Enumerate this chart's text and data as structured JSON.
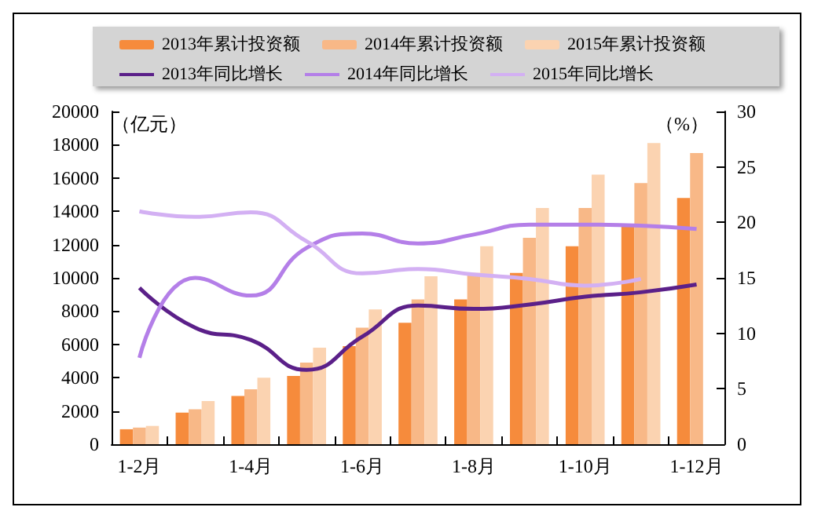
{
  "chart_data": {
    "type": "bar",
    "ylabel": "（亿元）",
    "y2label": "（%）",
    "categories": [
      "1-2月",
      null,
      "1-4月",
      null,
      "1-6月",
      null,
      "1-8月",
      null,
      "1-10月",
      null,
      "1-12月"
    ],
    "series": [
      {
        "name": "2013年累计投资额",
        "color": "#f68b3c",
        "values": [
          900,
          1900,
          2900,
          4100,
          5900,
          7300,
          8700,
          10300,
          11900,
          13200,
          14800
        ]
      },
      {
        "name": "2014年累计投资额",
        "color": "#f8b887",
        "values": [
          1000,
          2100,
          3300,
          4900,
          7000,
          8700,
          10300,
          12400,
          14200,
          15700,
          17500
        ]
      },
      {
        "name": "2015年累计投资额",
        "color": "#fbd3b1",
        "values": [
          1100,
          2600,
          4000,
          5800,
          8100,
          10100,
          11900,
          14200,
          16200,
          18100,
          null
        ]
      },
      {
        "name": "2013年同比增长",
        "type": "line",
        "axis": "y2",
        "color": "#5b2089",
        "values": [
          14.1,
          10.5,
          9.4,
          6.7,
          9.7,
          12.5,
          12.2,
          12.6,
          13.3,
          13.7,
          14.4
        ]
      },
      {
        "name": "2014年同比增长",
        "type": "line",
        "axis": "y2",
        "color": "#b47fe8",
        "values": [
          7.8,
          15.0,
          13.4,
          17.7,
          19.0,
          18.1,
          18.9,
          19.8,
          19.8,
          19.7,
          19.4
        ]
      },
      {
        "name": "2015年同比增长",
        "type": "line",
        "axis": "y2",
        "color": "#d3b0f3",
        "values": [
          21.0,
          20.5,
          20.9,
          18.3,
          15.4,
          15.8,
          15.3,
          14.9,
          14.3,
          14.9,
          null
        ]
      }
    ],
    "ylim": [
      0,
      20000
    ],
    "yticks": [
      0,
      2000,
      4000,
      6000,
      8000,
      10000,
      12000,
      14000,
      16000,
      18000,
      20000
    ],
    "y2lim": [
      0,
      30
    ],
    "y2ticks": [
      0,
      5,
      10,
      15,
      20,
      25,
      30
    ],
    "grid": false,
    "legend": "top",
    "marker": "none",
    "line_style": "solid"
  }
}
